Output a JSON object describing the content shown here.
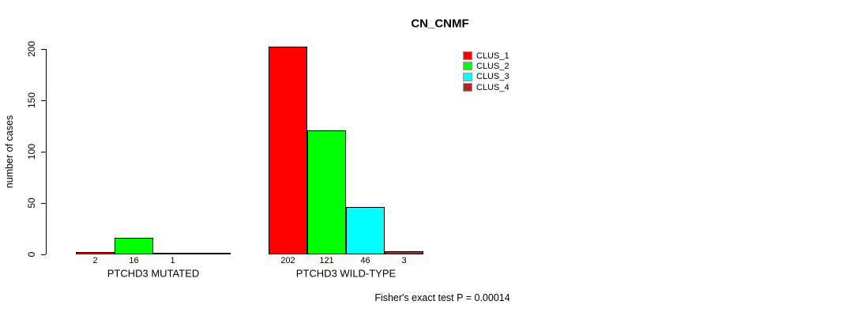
{
  "chart_data": {
    "type": "bar",
    "title": "CN_CNMF",
    "ylabel": "number of cases",
    "xlabel": "",
    "ylim": [
      0,
      200
    ],
    "yticks": [
      0,
      50,
      100,
      150,
      200
    ],
    "grid": false,
    "legend_position": "top-right",
    "categories": [
      "PTCHD3 MUTATED",
      "PTCHD3 WILD-TYPE"
    ],
    "series": [
      {
        "name": "CLUS_1",
        "color": "#ff0000",
        "values": [
          2,
          202
        ]
      },
      {
        "name": "CLUS_2",
        "color": "#00ff00",
        "values": [
          16,
          121
        ]
      },
      {
        "name": "CLUS_3",
        "color": "#00ffff",
        "values": [
          1,
          46
        ]
      },
      {
        "name": "CLUS_4",
        "color": "#a52a2a",
        "values": [
          0,
          3
        ]
      }
    ],
    "bar_value_labels": [
      [
        "2",
        "16",
        "1",
        ""
      ],
      [
        "202",
        "121",
        "46",
        "3"
      ]
    ],
    "annotation": "Fisher's exact test P = 0.00014",
    "axis_color": "#000000",
    "bar_border_color": "#000000"
  }
}
